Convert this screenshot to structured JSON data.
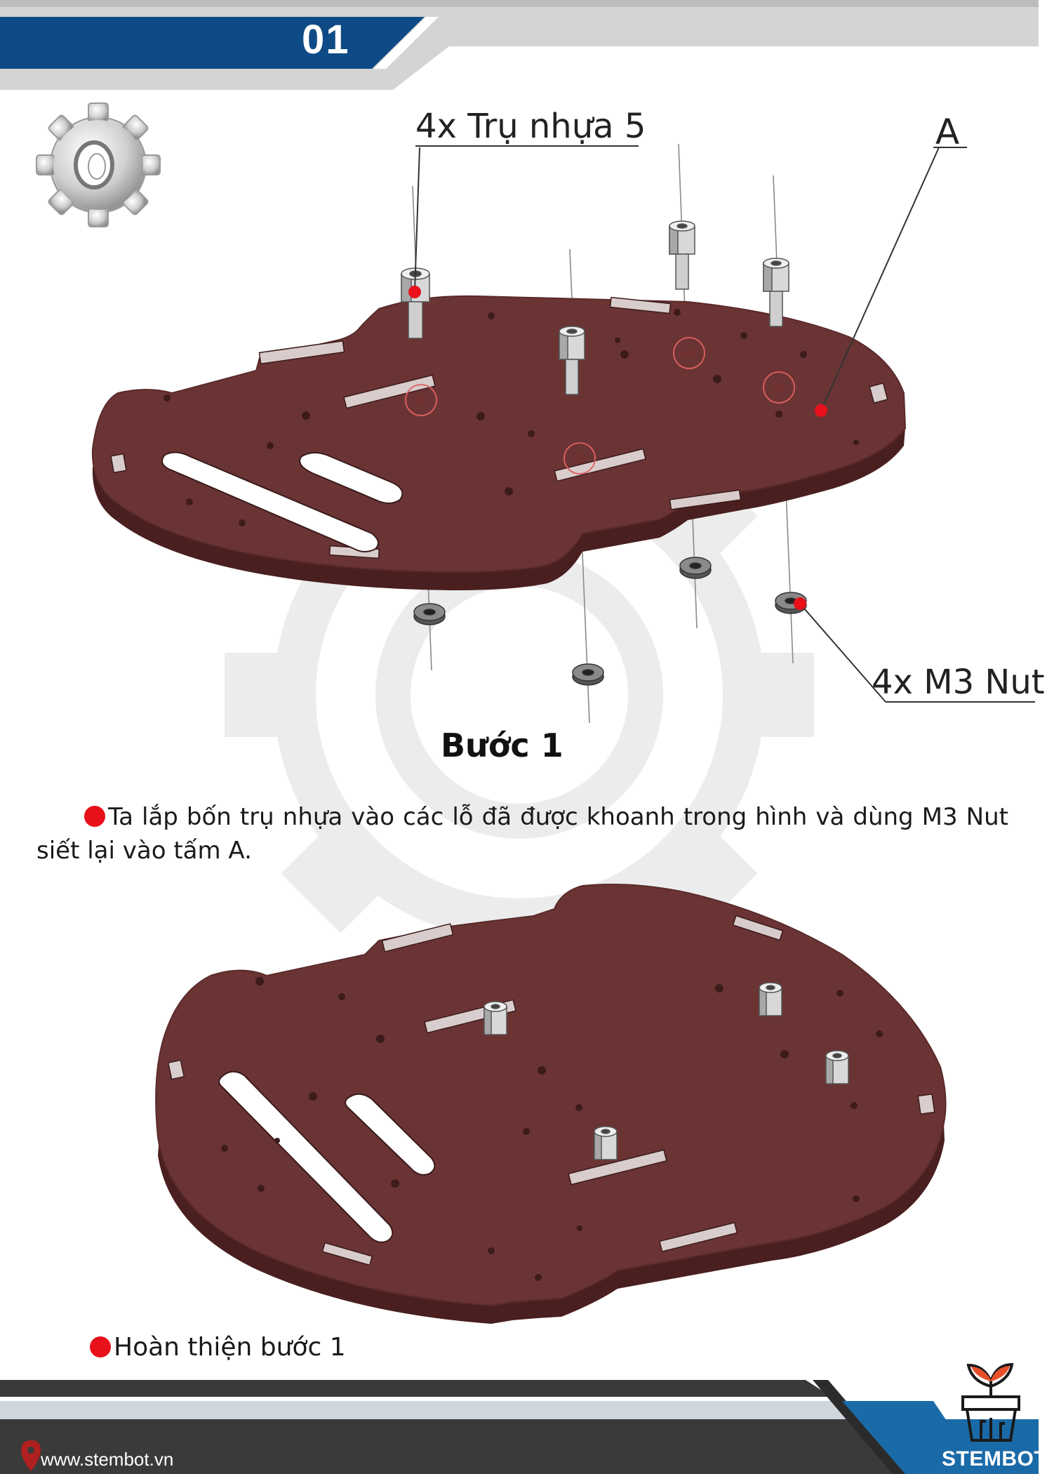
{
  "header": {
    "step_number": "01"
  },
  "diagram": {
    "label_plastic_pillars": "4x Trụ nhựa 5",
    "label_plate": "A",
    "label_nuts": "4x M3 Nut",
    "step_title": "Bước 1"
  },
  "instructions": {
    "paragraph": "Ta lắp bốn trụ nhựa vào các lỗ đã được khoanh trong hình và dùng M3 Nut siết lại vào tấm A.",
    "completion": "Hoàn thiện bước 1"
  },
  "footer": {
    "website": "www.stembot.vn",
    "brand": "STEMBOT"
  },
  "colors": {
    "header_blue": "#0e4b86",
    "plate_red": "#6b3434",
    "bullet_red": "#e8101a",
    "footer_dark": "#3a3a3a"
  },
  "icons": [
    "gear-icon",
    "location-pin-icon",
    "stembot-plant-logo"
  ]
}
